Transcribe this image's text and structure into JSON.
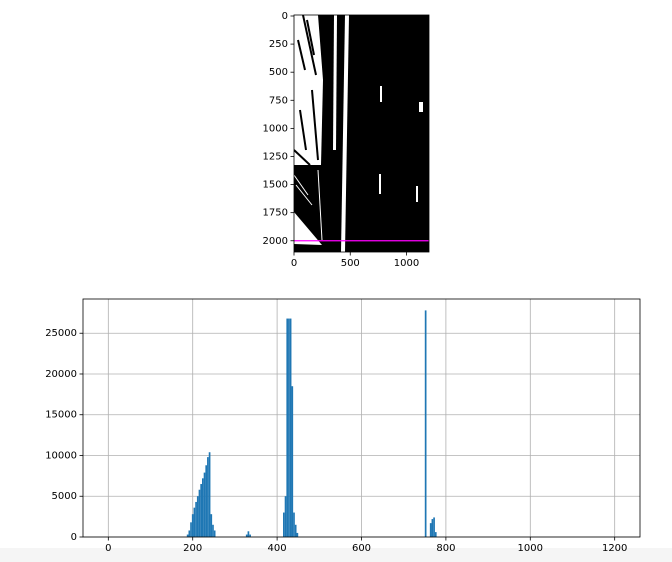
{
  "chart_data": [
    {
      "type": "image",
      "xlim": [
        0,
        1200
      ],
      "ylim": [
        2100,
        0
      ],
      "xticks": [
        0,
        500,
        1000
      ],
      "yticks": [
        0,
        250,
        500,
        750,
        1000,
        1250,
        1500,
        1750,
        2000
      ],
      "hline": {
        "value": 2000,
        "color": "#ff00ff"
      }
    },
    {
      "type": "bar",
      "color": "#1f77b4",
      "x": [
        188,
        192,
        196,
        200,
        204,
        208,
        212,
        216,
        220,
        224,
        228,
        232,
        236,
        240,
        244,
        248,
        252,
        328,
        332,
        336,
        416,
        420,
        424,
        428,
        432,
        436,
        440,
        444,
        448,
        752,
        764,
        768,
        772,
        776
      ],
      "values": [
        300,
        800,
        1800,
        2800,
        3600,
        4300,
        5000,
        5800,
        6500,
        7200,
        7900,
        8800,
        9800,
        10400,
        2800,
        1500,
        800,
        300,
        700,
        300,
        3000,
        5000,
        26800,
        26800,
        26800,
        18500,
        3000,
        1500,
        500,
        27800,
        1700,
        2200,
        2400,
        600
      ],
      "xlim": [
        -60,
        1260
      ],
      "ylim": [
        0,
        29200
      ],
      "xticks": [
        0,
        200,
        400,
        600,
        800,
        1000,
        1200
      ],
      "yticks": [
        0,
        5000,
        10000,
        15000,
        20000,
        25000
      ],
      "grid": true
    }
  ]
}
